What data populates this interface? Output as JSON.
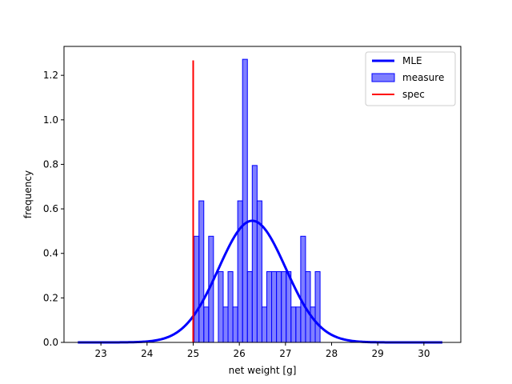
{
  "chart_data": {
    "type": "bar",
    "title": "",
    "xlabel": "net weight [g]",
    "ylabel": "frequency",
    "xlim": [
      22.2,
      30.8
    ],
    "ylim": [
      0.0,
      1.33
    ],
    "xticks": [
      23,
      24,
      25,
      26,
      27,
      28,
      29,
      30
    ],
    "yticks": [
      0.0,
      0.2,
      0.4,
      0.6,
      0.8,
      1.0,
      1.2
    ],
    "grid": false,
    "legend_position": "top-right",
    "legend": [
      {
        "label": "MLE",
        "kind": "line",
        "color": "#0000ff"
      },
      {
        "label": "measure",
        "kind": "patch",
        "color": "#0000ff"
      },
      {
        "label": "spec",
        "kind": "line",
        "color": "#ff0000"
      }
    ],
    "histogram": {
      "name": "measure",
      "color": "#0000ff",
      "alpha": 0.5,
      "bin_width": 0.105,
      "bin_starts": [
        25.02,
        25.125,
        25.23,
        25.335,
        25.44,
        25.545,
        25.65,
        25.755,
        25.86,
        25.965,
        26.07,
        26.175,
        26.28,
        26.385,
        26.49,
        26.595,
        26.7,
        26.805,
        26.91,
        27.015,
        27.12,
        27.225,
        27.33,
        27.435,
        27.54,
        27.645
      ],
      "values": [
        0.477,
        0.636,
        0.159,
        0.477,
        0.0,
        0.318,
        0.159,
        0.318,
        0.159,
        0.636,
        1.272,
        0.318,
        0.795,
        0.636,
        0.159,
        0.318,
        0.318,
        0.318,
        0.318,
        0.318,
        0.159,
        0.159,
        0.477,
        0.318,
        0.159,
        0.318
      ]
    },
    "fit": {
      "name": "MLE",
      "distribution": "normal",
      "mean": 26.28,
      "std": 0.73,
      "x_range": [
        22.5,
        30.4
      ],
      "color": "#0000ff"
    },
    "spec": {
      "name": "spec",
      "x": 25.0,
      "y_range": [
        0.0,
        1.267
      ],
      "color": "#ff0000"
    }
  }
}
